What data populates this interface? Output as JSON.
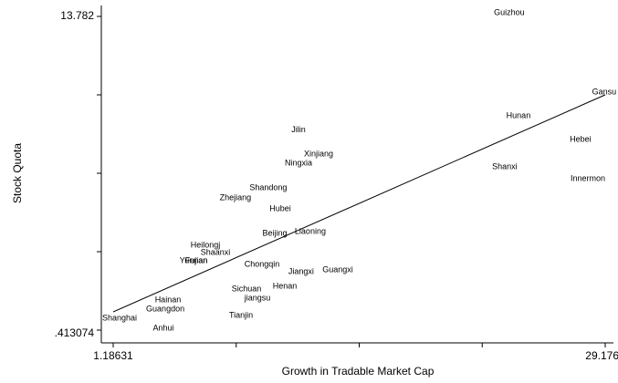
{
  "chart_data": {
    "type": "scatter",
    "xlabel": "Growth in Tradable Market Cap",
    "ylabel": "Stock Quota",
    "point_labels": [
      "Guizhou",
      "Gansu",
      "Hunan",
      "Hebei",
      "Shanxi",
      "Innermon",
      "Jilin",
      "Xinjiang",
      "Ningxia",
      "Shandong",
      "Zhejiang",
      "Hubei",
      "Beijing",
      "Liaoning",
      "Heilongj",
      "Shaanxi",
      "Yunnan",
      "Fujian",
      "Chongqin",
      "Jiangxi",
      "Guangxi",
      "Henan",
      "Sichuan",
      "jiangsu",
      "Hainan",
      "Guangdon",
      "Tianjin",
      "Shanghai",
      "Anhui"
    ],
    "x": [
      23.72,
      29.12,
      24.24,
      27.77,
      23.46,
      28.19,
      11.73,
      12.87,
      11.73,
      10.01,
      8.14,
      10.69,
      10.38,
      12.4,
      6.43,
      7.0,
      5.76,
      5.91,
      9.65,
      11.88,
      13.96,
      10.95,
      8.77,
      9.39,
      4.3,
      4.15,
      8.46,
      1.55,
      4.04
    ],
    "values": [
      13.94,
      10.56,
      9.55,
      8.54,
      7.37,
      6.86,
      8.93,
      7.91,
      7.52,
      6.48,
      6.05,
      5.58,
      4.53,
      4.61,
      4.03,
      3.72,
      3.37,
      3.37,
      3.21,
      2.9,
      2.98,
      2.28,
      2.16,
      1.77,
      1.7,
      1.31,
      1.035,
      0.918,
      0.49
    ],
    "fit_line": {
      "x": [
        1.18631,
        29.1763
      ],
      "y": [
        1.19,
        10.44
      ]
    },
    "xlim": [
      1.18631,
      29.1763
    ],
    "xticks": [
      1.18631,
      29.1763
    ],
    "ylim": [
      0.413074,
      13.782
    ],
    "yticks": [
      {
        "value": 0.413074,
        "label": ".413074"
      },
      13.782
    ],
    "color": "#000000"
  }
}
